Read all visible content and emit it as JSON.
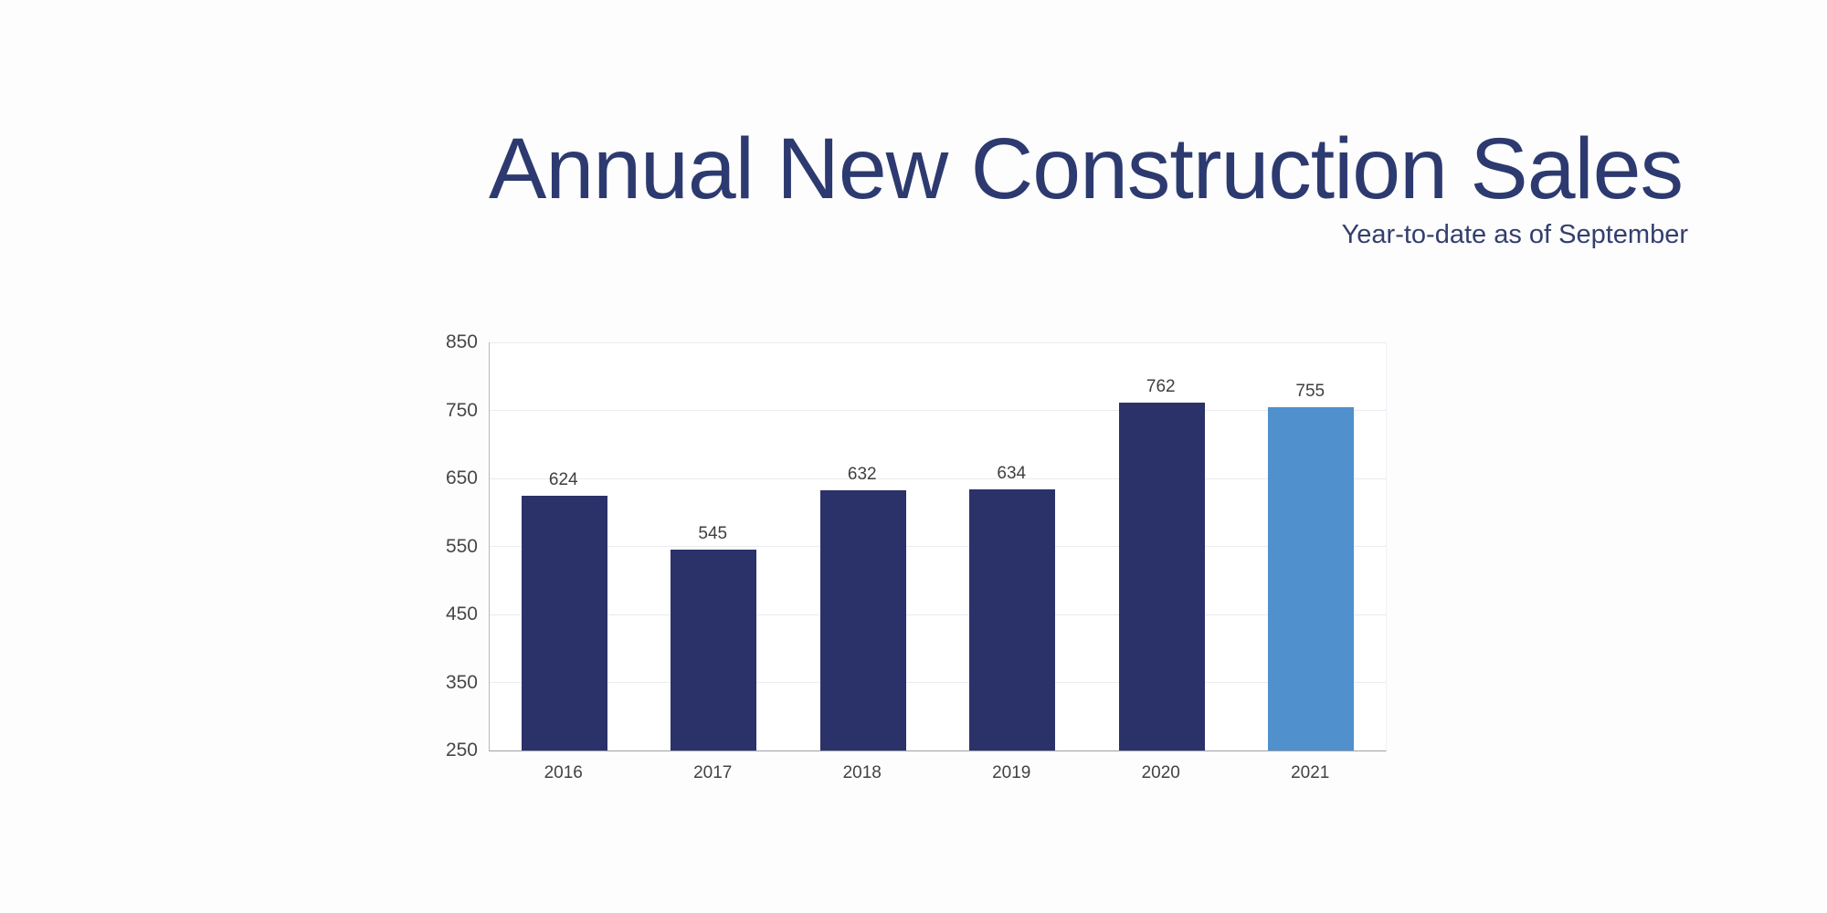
{
  "header": {
    "title": "Annual New Construction Sales",
    "subtitle": "Year-to-date as of September"
  },
  "chart_data": {
    "type": "bar",
    "title": "Annual New Construction Sales",
    "subtitle": "Year-to-date as of September",
    "categories": [
      "2016",
      "2017",
      "2018",
      "2019",
      "2020",
      "2021"
    ],
    "values": [
      624,
      545,
      632,
      634,
      762,
      755
    ],
    "value_labels": [
      "624",
      "545",
      "632",
      "634",
      "762",
      "755"
    ],
    "bar_colors": [
      "#2a3269",
      "#2a3269",
      "#2a3269",
      "#2a3269",
      "#2a3269",
      "#4f90cd"
    ],
    "highlight_index": 5,
    "xlabel": "",
    "ylabel": "",
    "ylim": [
      250,
      850
    ],
    "yticks": [
      250,
      350,
      450,
      550,
      650,
      750,
      850
    ],
    "grid": true,
    "legend_position": "none"
  },
  "colors": {
    "title_text": "#2d3a70",
    "subtitle_text": "#333f6e",
    "navy_bar": "#2a3269",
    "highlight_bar": "#4f90cd",
    "gridline": "#ebebf1",
    "axis_line": "#9fa0a6",
    "tick_text": "#474747",
    "value_text": "#3f3f3f"
  }
}
